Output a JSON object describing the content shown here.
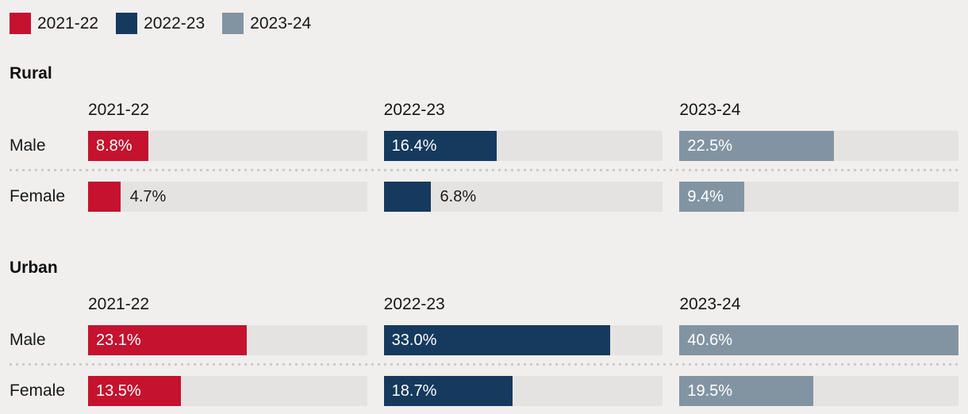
{
  "ui": {
    "legend": [
      {
        "label": "2021-22"
      },
      {
        "label": "2022-23"
      },
      {
        "label": "2023-24"
      }
    ],
    "sections": [
      {
        "title": "Rural",
        "columns": [
          "2021-22",
          "2022-23",
          "2023-24"
        ],
        "rows": [
          {
            "label": "Male"
          },
          {
            "label": "Female"
          }
        ]
      },
      {
        "title": "Urban",
        "columns": [
          "2021-22",
          "2022-23",
          "2023-24"
        ],
        "rows": [
          {
            "label": "Male"
          },
          {
            "label": "Female"
          }
        ]
      }
    ]
  },
  "colors": {
    "background": "#f0efee",
    "track": "#e4e3e2",
    "separator": "#cbcbcb",
    "text": "#161616",
    "bar_label_inside": "#ffffff",
    "bar_label_outside": "#1a1a1a"
  },
  "chart_data": {
    "type": "bar",
    "orientation": "horizontal",
    "title": "",
    "legend": [
      "2021-22",
      "2022-23",
      "2023-24"
    ],
    "legend_position": "top-left",
    "series_colors": [
      "#c4122f",
      "#163a5e",
      "#8294a2"
    ],
    "xlim": [
      0,
      40.6
    ],
    "value_unit": "%",
    "grid": false,
    "label_inside_threshold": 8,
    "groups": [
      {
        "group": "Rural",
        "categories": [
          "Male",
          "Female"
        ],
        "series": [
          {
            "name": "2021-22",
            "values": [
              8.8,
              4.7
            ],
            "display": [
              "8.8%",
              "4.7%"
            ]
          },
          {
            "name": "2022-23",
            "values": [
              16.4,
              6.8
            ],
            "display": [
              "16.4%",
              "6.8%"
            ]
          },
          {
            "name": "2023-24",
            "values": [
              22.5,
              9.4
            ],
            "display": [
              "22.5%",
              "9.4%"
            ]
          }
        ]
      },
      {
        "group": "Urban",
        "categories": [
          "Male",
          "Female"
        ],
        "series": [
          {
            "name": "2021-22",
            "values": [
              23.1,
              13.5
            ],
            "display": [
              "23.1%",
              "13.5%"
            ]
          },
          {
            "name": "2022-23",
            "values": [
              33.0,
              18.7
            ],
            "display": [
              "33.0%",
              "18.7%"
            ]
          },
          {
            "name": "2023-24",
            "values": [
              40.6,
              19.5
            ],
            "display": [
              "40.6%",
              "19.5%"
            ]
          }
        ]
      }
    ]
  }
}
